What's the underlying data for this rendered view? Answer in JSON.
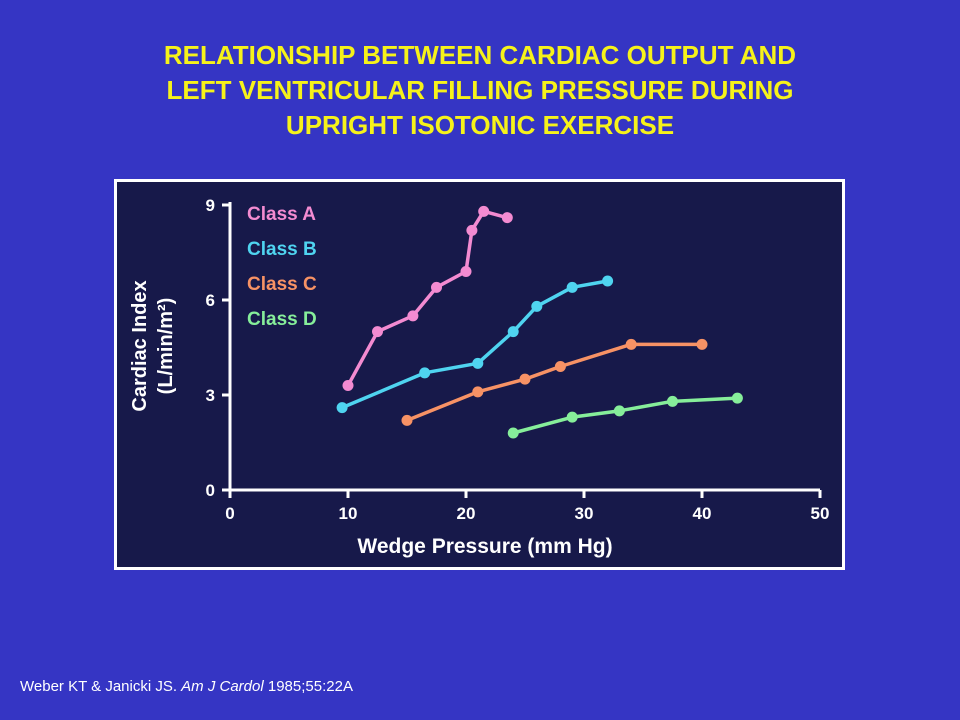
{
  "title": {
    "line1": "RELATIONSHIP BETWEEN CARDIAC OUTPUT AND",
    "line2": "LEFT VENTRICULAR FILLING PRESSURE DURING",
    "line3": "UPRIGHT ISOTONIC EXERCISE"
  },
  "citation": {
    "authors": "Weber KT & Janicki JS. ",
    "journal": "Am J Cardol",
    "ref": " 1985;55:22A"
  },
  "chart_data": {
    "type": "line",
    "xlabel": "Wedge Pressure (mm Hg)",
    "ylabel_line1": "Cardiac Index",
    "ylabel_line2": "(L/min/m²)",
    "xlim": [
      0,
      50
    ],
    "ylim": [
      0,
      9
    ],
    "xticks": [
      "0",
      "10",
      "20",
      "30",
      "40",
      "50"
    ],
    "yticks": [
      "0",
      "3",
      "6",
      "9"
    ],
    "legend_position": "top-left",
    "series": [
      {
        "name": "Class A",
        "color": "#f38bd1",
        "x": [
          10,
          12.5,
          15.5,
          17.5,
          20,
          20.5,
          21.5,
          23.5
        ],
        "y": [
          3.3,
          5,
          5.5,
          6.4,
          6.9,
          8.2,
          8.8,
          8.6
        ]
      },
      {
        "name": "Class B",
        "color": "#4fd4f0",
        "x": [
          9.5,
          16.5,
          21,
          24,
          26,
          29,
          32
        ],
        "y": [
          2.6,
          3.7,
          4,
          5,
          5.8,
          6.4,
          6.6
        ]
      },
      {
        "name": "Class C",
        "color": "#f79265",
        "x": [
          15,
          21,
          25,
          28,
          34,
          40
        ],
        "y": [
          2.2,
          3.1,
          3.5,
          3.9,
          4.6,
          4.6
        ]
      },
      {
        "name": "Class D",
        "color": "#86ee9a",
        "x": [
          24,
          29,
          33,
          37.5,
          43
        ],
        "y": [
          1.8,
          2.3,
          2.5,
          2.8,
          2.9
        ]
      }
    ]
  }
}
